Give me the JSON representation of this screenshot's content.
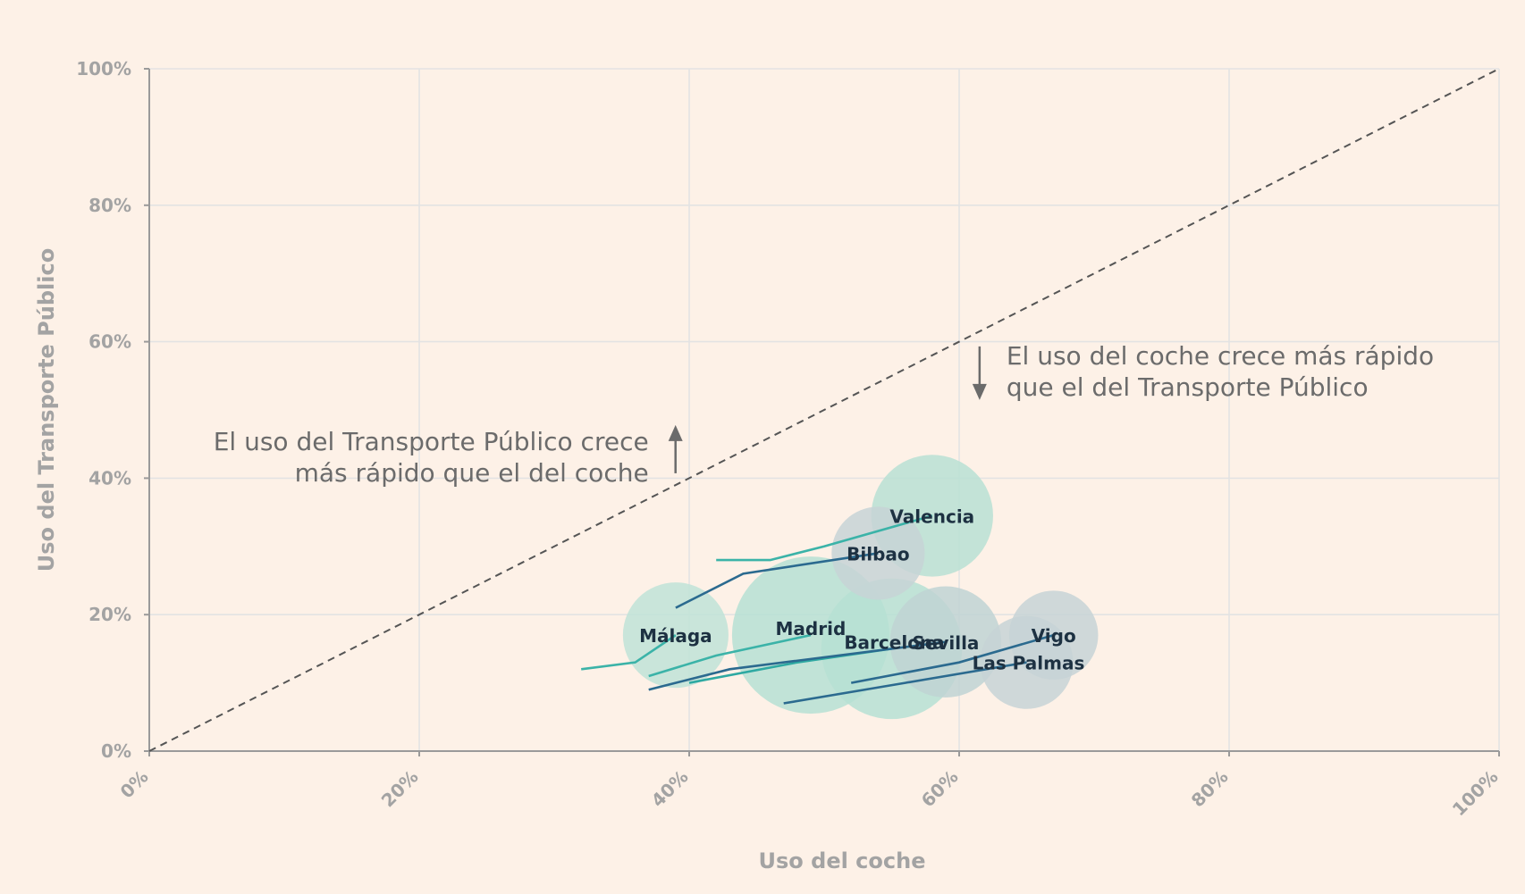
{
  "chart_data": {
    "type": "scatter",
    "title": "",
    "xlabel": "Uso del coche",
    "ylabel": "Uso del Transporte Público",
    "xlim": [
      0,
      100
    ],
    "ylim": [
      0,
      100
    ],
    "x_ticks": [
      "0%",
      "20%",
      "40%",
      "60%",
      "80%",
      "100%"
    ],
    "y_ticks": [
      "0%",
      "20%",
      "40%",
      "60%",
      "80%",
      "100%"
    ],
    "grid": true,
    "reference_line": {
      "style": "dashed",
      "from": [
        0,
        0
      ],
      "to": [
        100,
        100
      ]
    },
    "annotations": [
      {
        "lines": [
          "El uso del Transporte Público crece",
          "más rápido que el del coche"
        ],
        "arrow": "up",
        "anchor": [
          37,
          47
        ]
      },
      {
        "lines": [
          "El uso del coche crece más rápido",
          "que el del Transporte Público"
        ],
        "arrow": "down",
        "anchor": [
          63.5,
          58
        ]
      }
    ],
    "series": [
      {
        "name": "Valencia",
        "color": "#3bb3a8",
        "bubble_color": "#b8e1d4",
        "size": 0.6,
        "path": [
          [
            42,
            28
          ],
          [
            46,
            28
          ],
          [
            50,
            30
          ],
          [
            58,
            34.5
          ]
        ]
      },
      {
        "name": "Bilbao",
        "color": "#2b6a8f",
        "bubble_color": "#c7d3d6",
        "size": 0.35,
        "path": [
          [
            39,
            21
          ],
          [
            44,
            26
          ],
          [
            54,
            29
          ]
        ]
      },
      {
        "name": "Málaga",
        "color": "#3bb3a8",
        "bubble_color": "#bfe3d7",
        "size": 0.45,
        "path": [
          [
            32,
            12
          ],
          [
            36,
            13
          ],
          [
            39,
            17
          ]
        ]
      },
      {
        "name": "Madrid",
        "color": "#3bb3a8",
        "bubble_color": "#b6e0d3",
        "size": 1.0,
        "path": [
          [
            37,
            11
          ],
          [
            42,
            14
          ],
          [
            49,
            17
          ]
        ]
      },
      {
        "name": "Barcelona",
        "color": "#2ea9a2",
        "bubble_color": "#b6e0d3",
        "size": 0.8,
        "path": [
          [
            40,
            10
          ],
          [
            48,
            13
          ],
          [
            55,
            15
          ]
        ]
      },
      {
        "name": "Sevilla",
        "color": "#2b6a8f",
        "bubble_color": "#c0d4d4",
        "size": 0.5,
        "path": [
          [
            37,
            9
          ],
          [
            43,
            12
          ],
          [
            59,
            16
          ]
        ]
      },
      {
        "name": "Vigo",
        "color": "#2b6a8f",
        "bubble_color": "#c7d3d6",
        "size": 0.32,
        "path": [
          [
            52,
            10
          ],
          [
            60,
            13
          ],
          [
            67,
            17
          ]
        ]
      },
      {
        "name": "Las Palmas",
        "color": "#2b6a8f",
        "bubble_color": "#c7d3d6",
        "size": 0.35,
        "path": [
          [
            47,
            7
          ],
          [
            56,
            10
          ],
          [
            65,
            13
          ]
        ]
      }
    ]
  }
}
